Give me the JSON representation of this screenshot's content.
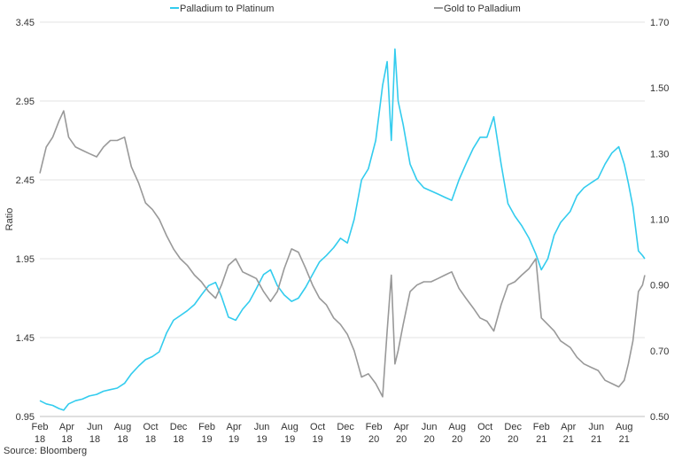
{
  "chart_data": {
    "type": "line",
    "title": "",
    "ylabel": "Ratio",
    "source": "Source: Bloomberg",
    "y_left": {
      "ticks": [
        "0.95",
        "1.45",
        "1.95",
        "2.45",
        "2.95",
        "3.45"
      ],
      "lim": [
        0.95,
        3.45
      ]
    },
    "y_right": {
      "ticks": [
        "0.50",
        "0.70",
        "0.90",
        "1.10",
        "1.30",
        "1.50",
        "1.70"
      ],
      "lim": [
        0.5,
        1.7
      ]
    },
    "x_ticks": [
      {
        "date": "2018-02-01",
        "label": [
          "Feb",
          "18"
        ]
      },
      {
        "date": "2018-04-01",
        "label": [
          "Apr",
          "18"
        ]
      },
      {
        "date": "2018-06-01",
        "label": [
          "Jun",
          "18"
        ]
      },
      {
        "date": "2018-08-01",
        "label": [
          "Aug",
          "18"
        ]
      },
      {
        "date": "2018-10-01",
        "label": [
          "Oct",
          "18"
        ]
      },
      {
        "date": "2018-12-01",
        "label": [
          "Dec",
          "18"
        ]
      },
      {
        "date": "2019-02-01",
        "label": [
          "Feb",
          "19"
        ]
      },
      {
        "date": "2019-04-01",
        "label": [
          "Apr",
          "19"
        ]
      },
      {
        "date": "2019-06-01",
        "label": [
          "Jun",
          "19"
        ]
      },
      {
        "date": "2019-08-01",
        "label": [
          "Aug",
          "19"
        ]
      },
      {
        "date": "2019-10-01",
        "label": [
          "Oct",
          "19"
        ]
      },
      {
        "date": "2019-12-01",
        "label": [
          "Dec",
          "19"
        ]
      },
      {
        "date": "2020-02-01",
        "label": [
          "Feb",
          "20"
        ]
      },
      {
        "date": "2020-04-01",
        "label": [
          "Apr",
          "20"
        ]
      },
      {
        "date": "2020-06-01",
        "label": [
          "Jun",
          "20"
        ]
      },
      {
        "date": "2020-08-01",
        "label": [
          "Aug",
          "20"
        ]
      },
      {
        "date": "2020-10-01",
        "label": [
          "Oct",
          "20"
        ]
      },
      {
        "date": "2020-12-01",
        "label": [
          "Dec",
          "20"
        ]
      },
      {
        "date": "2021-02-01",
        "label": [
          "Feb",
          "21"
        ]
      },
      {
        "date": "2021-04-01",
        "label": [
          "Apr",
          "21"
        ]
      },
      {
        "date": "2021-06-01",
        "label": [
          "Jun",
          "21"
        ]
      },
      {
        "date": "2021-08-01",
        "label": [
          "Aug",
          "21"
        ]
      }
    ],
    "x_range": [
      "2018-02-01",
      "2021-09-15"
    ],
    "grid": "horizontal",
    "legend_position": "top-center",
    "series": [
      {
        "name": "Palladium to Platinum",
        "axis": "left",
        "color": "#33ccee",
        "points": [
          [
            "2018-02-01",
            1.05
          ],
          [
            "2018-02-15",
            1.03
          ],
          [
            "2018-03-01",
            1.02
          ],
          [
            "2018-03-15",
            1.0
          ],
          [
            "2018-03-25",
            0.99
          ],
          [
            "2018-04-05",
            1.03
          ],
          [
            "2018-04-20",
            1.05
          ],
          [
            "2018-05-05",
            1.06
          ],
          [
            "2018-05-20",
            1.08
          ],
          [
            "2018-06-05",
            1.09
          ],
          [
            "2018-06-20",
            1.11
          ],
          [
            "2018-07-05",
            1.12
          ],
          [
            "2018-07-20",
            1.13
          ],
          [
            "2018-08-05",
            1.16
          ],
          [
            "2018-08-20",
            1.22
          ],
          [
            "2018-09-05",
            1.27
          ],
          [
            "2018-09-20",
            1.31
          ],
          [
            "2018-10-05",
            1.33
          ],
          [
            "2018-10-20",
            1.36
          ],
          [
            "2018-11-05",
            1.48
          ],
          [
            "2018-11-20",
            1.56
          ],
          [
            "2018-12-05",
            1.59
          ],
          [
            "2018-12-20",
            1.62
          ],
          [
            "2019-01-05",
            1.66
          ],
          [
            "2019-01-20",
            1.72
          ],
          [
            "2019-02-05",
            1.78
          ],
          [
            "2019-02-20",
            1.8
          ],
          [
            "2019-03-05",
            1.71
          ],
          [
            "2019-03-20",
            1.58
          ],
          [
            "2019-04-05",
            1.56
          ],
          [
            "2019-04-20",
            1.63
          ],
          [
            "2019-05-05",
            1.68
          ],
          [
            "2019-05-20",
            1.76
          ],
          [
            "2019-06-05",
            1.85
          ],
          [
            "2019-06-20",
            1.88
          ],
          [
            "2019-07-05",
            1.78
          ],
          [
            "2019-07-20",
            1.72
          ],
          [
            "2019-08-05",
            1.68
          ],
          [
            "2019-08-20",
            1.7
          ],
          [
            "2019-09-05",
            1.77
          ],
          [
            "2019-09-20",
            1.85
          ],
          [
            "2019-10-05",
            1.93
          ],
          [
            "2019-10-20",
            1.97
          ],
          [
            "2019-11-05",
            2.02
          ],
          [
            "2019-11-20",
            2.08
          ],
          [
            "2019-12-05",
            2.05
          ],
          [
            "2019-12-20",
            2.2
          ],
          [
            "2020-01-05",
            2.45
          ],
          [
            "2020-01-20",
            2.52
          ],
          [
            "2020-02-05",
            2.7
          ],
          [
            "2020-02-20",
            3.05
          ],
          [
            "2020-03-01",
            3.2
          ],
          [
            "2020-03-10",
            2.7
          ],
          [
            "2020-03-18",
            3.28
          ],
          [
            "2020-03-25",
            2.95
          ],
          [
            "2020-04-05",
            2.8
          ],
          [
            "2020-04-20",
            2.55
          ],
          [
            "2020-05-05",
            2.45
          ],
          [
            "2020-05-20",
            2.4
          ],
          [
            "2020-06-05",
            2.38
          ],
          [
            "2020-06-20",
            2.36
          ],
          [
            "2020-07-05",
            2.34
          ],
          [
            "2020-07-20",
            2.32
          ],
          [
            "2020-08-05",
            2.45
          ],
          [
            "2020-08-20",
            2.55
          ],
          [
            "2020-09-05",
            2.65
          ],
          [
            "2020-09-20",
            2.72
          ],
          [
            "2020-10-05",
            2.72
          ],
          [
            "2020-10-20",
            2.85
          ],
          [
            "2020-11-05",
            2.55
          ],
          [
            "2020-11-20",
            2.3
          ],
          [
            "2020-12-05",
            2.22
          ],
          [
            "2020-12-20",
            2.16
          ],
          [
            "2021-01-05",
            2.08
          ],
          [
            "2021-01-20",
            1.98
          ],
          [
            "2021-02-01",
            1.88
          ],
          [
            "2021-02-15",
            1.95
          ],
          [
            "2021-03-01",
            2.1
          ],
          [
            "2021-03-15",
            2.18
          ],
          [
            "2021-04-05",
            2.25
          ],
          [
            "2021-04-20",
            2.35
          ],
          [
            "2021-05-05",
            2.4
          ],
          [
            "2021-05-20",
            2.43
          ],
          [
            "2021-06-05",
            2.46
          ],
          [
            "2021-06-20",
            2.55
          ],
          [
            "2021-07-05",
            2.62
          ],
          [
            "2021-07-20",
            2.66
          ],
          [
            "2021-08-01",
            2.55
          ],
          [
            "2021-08-10",
            2.43
          ],
          [
            "2021-08-20",
            2.28
          ],
          [
            "2021-09-01",
            2.0
          ],
          [
            "2021-09-10",
            1.97
          ],
          [
            "2021-09-15",
            1.95
          ]
        ]
      },
      {
        "name": "Gold to Palladium",
        "axis": "right",
        "color": "#999999",
        "points": [
          [
            "2018-02-01",
            1.24
          ],
          [
            "2018-02-15",
            1.32
          ],
          [
            "2018-03-01",
            1.35
          ],
          [
            "2018-03-15",
            1.4
          ],
          [
            "2018-03-25",
            1.43
          ],
          [
            "2018-04-05",
            1.35
          ],
          [
            "2018-04-20",
            1.32
          ],
          [
            "2018-05-05",
            1.31
          ],
          [
            "2018-05-20",
            1.3
          ],
          [
            "2018-06-05",
            1.29
          ],
          [
            "2018-06-20",
            1.32
          ],
          [
            "2018-07-05",
            1.34
          ],
          [
            "2018-07-20",
            1.34
          ],
          [
            "2018-08-05",
            1.35
          ],
          [
            "2018-08-20",
            1.26
          ],
          [
            "2018-09-05",
            1.21
          ],
          [
            "2018-09-20",
            1.15
          ],
          [
            "2018-10-05",
            1.13
          ],
          [
            "2018-10-20",
            1.1
          ],
          [
            "2018-11-05",
            1.05
          ],
          [
            "2018-11-20",
            1.01
          ],
          [
            "2018-12-05",
            0.98
          ],
          [
            "2018-12-20",
            0.96
          ],
          [
            "2019-01-05",
            0.93
          ],
          [
            "2019-01-20",
            0.91
          ],
          [
            "2019-02-05",
            0.88
          ],
          [
            "2019-02-20",
            0.86
          ],
          [
            "2019-03-05",
            0.9
          ],
          [
            "2019-03-20",
            0.96
          ],
          [
            "2019-04-05",
            0.98
          ],
          [
            "2019-04-20",
            0.94
          ],
          [
            "2019-05-05",
            0.93
          ],
          [
            "2019-05-20",
            0.92
          ],
          [
            "2019-06-05",
            0.88
          ],
          [
            "2019-06-20",
            0.85
          ],
          [
            "2019-07-05",
            0.88
          ],
          [
            "2019-07-20",
            0.95
          ],
          [
            "2019-08-05",
            1.01
          ],
          [
            "2019-08-20",
            1.0
          ],
          [
            "2019-09-05",
            0.95
          ],
          [
            "2019-09-20",
            0.9
          ],
          [
            "2019-10-05",
            0.86
          ],
          [
            "2019-10-20",
            0.84
          ],
          [
            "2019-11-05",
            0.8
          ],
          [
            "2019-11-20",
            0.78
          ],
          [
            "2019-12-05",
            0.75
          ],
          [
            "2019-12-20",
            0.7
          ],
          [
            "2020-01-05",
            0.62
          ],
          [
            "2020-01-20",
            0.63
          ],
          [
            "2020-02-05",
            0.6
          ],
          [
            "2020-02-20",
            0.56
          ],
          [
            "2020-03-01",
            0.76
          ],
          [
            "2020-03-10",
            0.93
          ],
          [
            "2020-03-18",
            0.66
          ],
          [
            "2020-03-25",
            0.7
          ],
          [
            "2020-04-05",
            0.78
          ],
          [
            "2020-04-20",
            0.88
          ],
          [
            "2020-05-05",
            0.9
          ],
          [
            "2020-05-20",
            0.91
          ],
          [
            "2020-06-05",
            0.91
          ],
          [
            "2020-06-20",
            0.92
          ],
          [
            "2020-07-05",
            0.93
          ],
          [
            "2020-07-20",
            0.94
          ],
          [
            "2020-08-05",
            0.89
          ],
          [
            "2020-08-20",
            0.86
          ],
          [
            "2020-09-05",
            0.83
          ],
          [
            "2020-09-20",
            0.8
          ],
          [
            "2020-10-05",
            0.79
          ],
          [
            "2020-10-20",
            0.76
          ],
          [
            "2020-11-05",
            0.84
          ],
          [
            "2020-11-20",
            0.9
          ],
          [
            "2020-12-05",
            0.91
          ],
          [
            "2020-12-20",
            0.93
          ],
          [
            "2021-01-05",
            0.95
          ],
          [
            "2021-01-20",
            0.98
          ],
          [
            "2021-02-01",
            0.8
          ],
          [
            "2021-02-15",
            0.78
          ],
          [
            "2021-03-01",
            0.76
          ],
          [
            "2021-03-15",
            0.73
          ],
          [
            "2021-04-05",
            0.71
          ],
          [
            "2021-04-20",
            0.68
          ],
          [
            "2021-05-05",
            0.66
          ],
          [
            "2021-05-20",
            0.65
          ],
          [
            "2021-06-05",
            0.64
          ],
          [
            "2021-06-20",
            0.61
          ],
          [
            "2021-07-05",
            0.6
          ],
          [
            "2021-07-20",
            0.59
          ],
          [
            "2021-08-01",
            0.61
          ],
          [
            "2021-08-10",
            0.66
          ],
          [
            "2021-08-20",
            0.73
          ],
          [
            "2021-09-01",
            0.88
          ],
          [
            "2021-09-10",
            0.9
          ],
          [
            "2021-09-15",
            0.93
          ]
        ]
      }
    ]
  }
}
